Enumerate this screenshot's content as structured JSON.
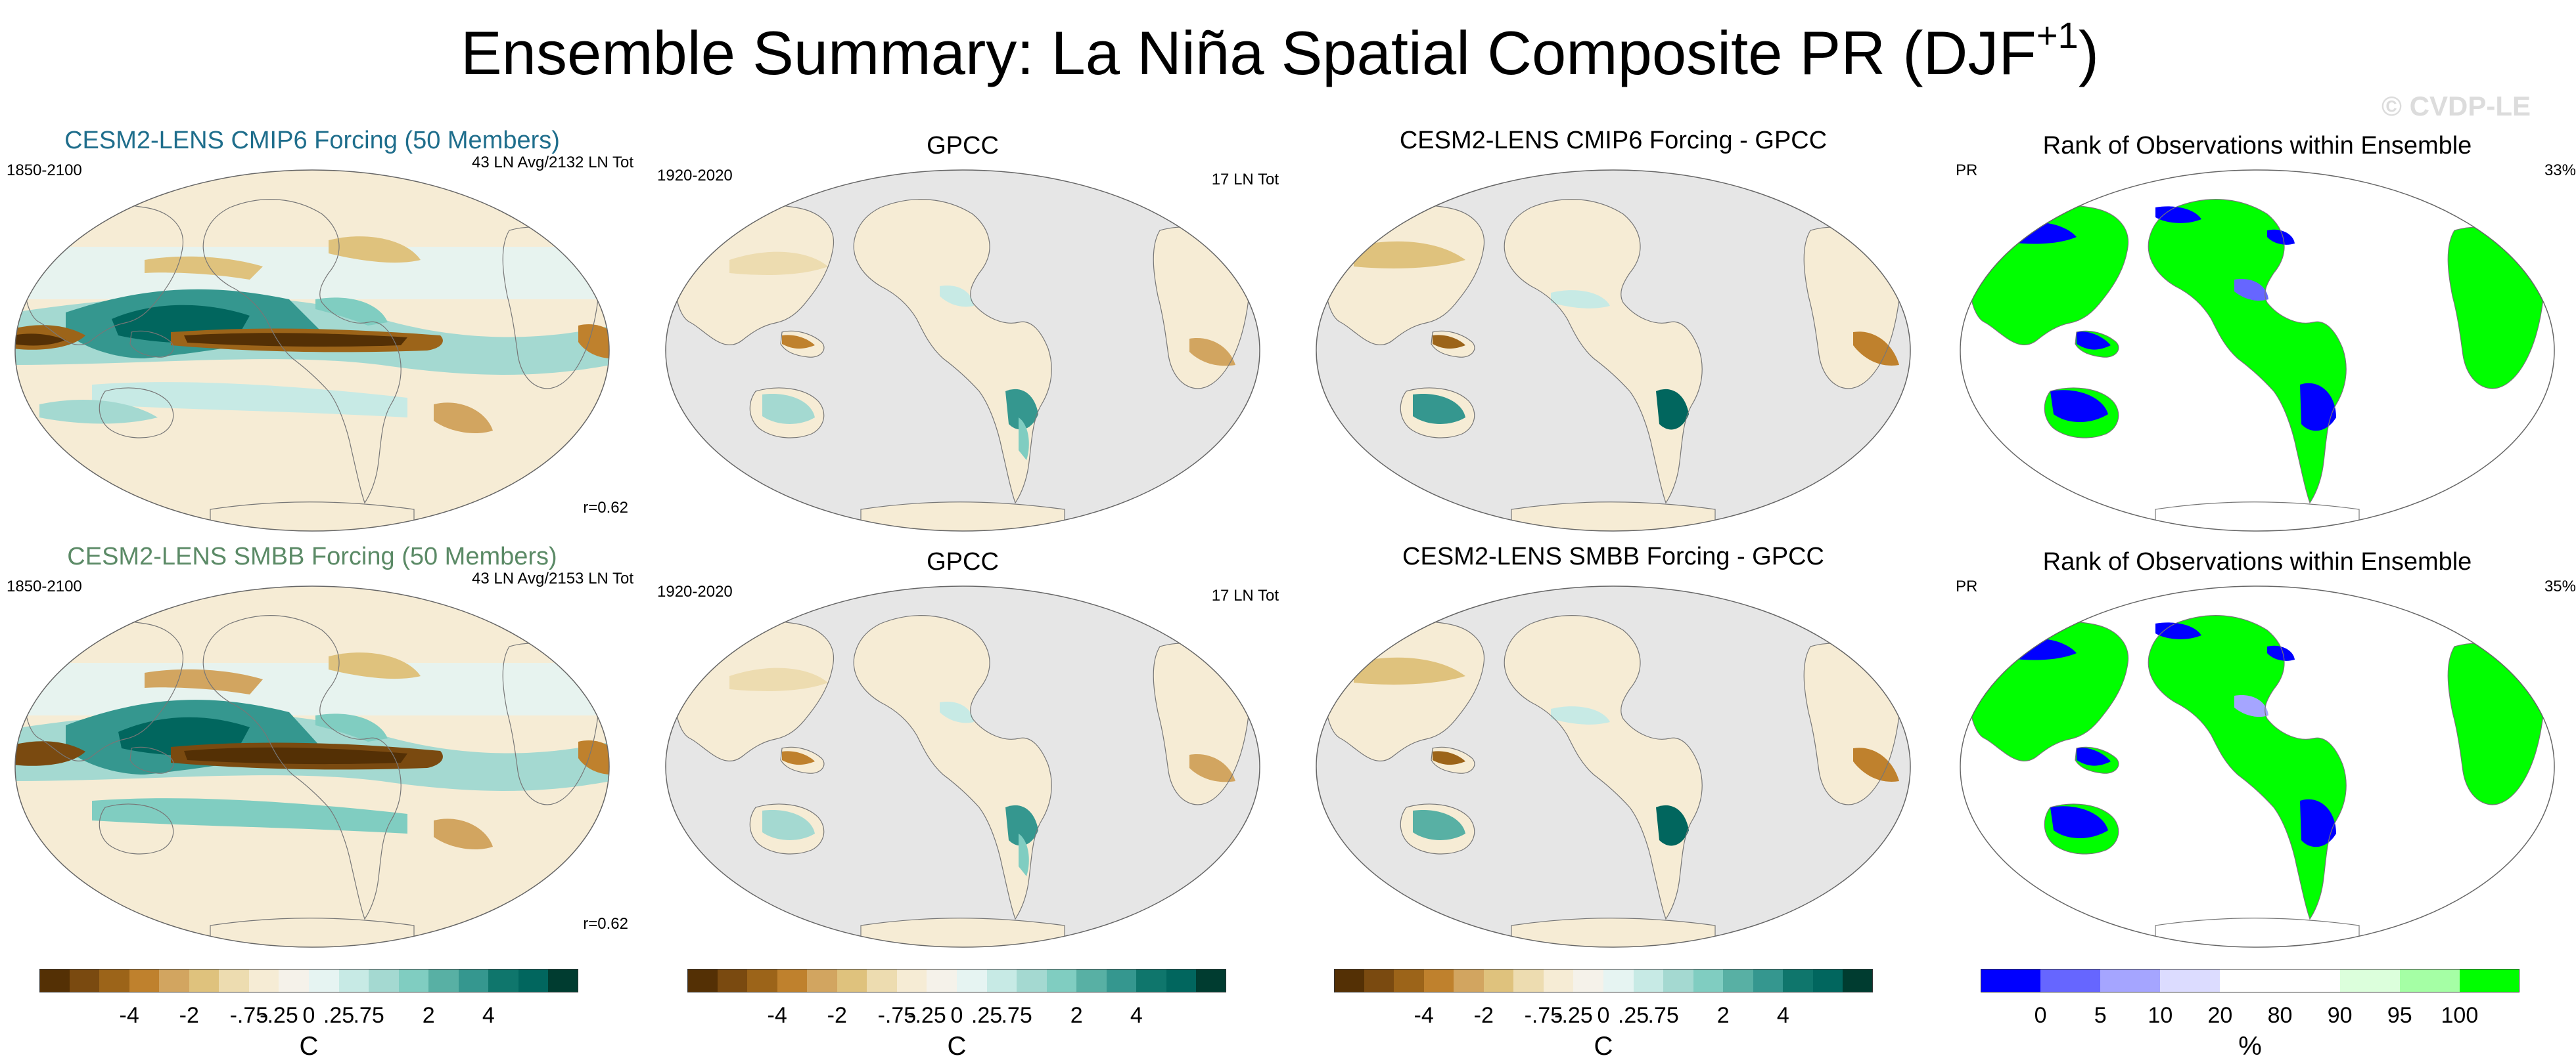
{
  "title_main": "Ensemble Summary: La Niña Spatial Composite PR (DJF",
  "title_sup": "+1",
  "title_end": ")",
  "watermark": "© CVDP-LE",
  "colors": {
    "brown_to_teal": [
      "#543005",
      "#7a4a10",
      "#9c6419",
      "#bf812d",
      "#d2a560",
      "#dfc27d",
      "#eddcb0",
      "#f6ecd5",
      "#f5f2ea",
      "#e6f4f2",
      "#c7eae5",
      "#a4d9d1",
      "#80cdc1",
      "#58b0a4",
      "#35978f",
      "#0f766c",
      "#01665e",
      "#003c30"
    ],
    "rank": [
      "#0000ff",
      "#6666ff",
      "#a5a5ff",
      "#dcdcff",
      "#ffffff",
      "#ffffff",
      "#dcffdc",
      "#a5ffa5",
      "#00ff00"
    ],
    "ocean_missing": "#e6e6e6",
    "title_cmip6": "#1f6e8c",
    "title_smbb": "#5b8a66"
  },
  "row1": {
    "ens_title": "CESM2-LENS CMIP6 Forcing (50 Members)",
    "ens_years": "1850-2100",
    "ens_events": "43 LN Avg/2132 LN Tot",
    "ens_r": "r=0.62",
    "obs_title": "GPCC",
    "obs_years": "1920-2020",
    "obs_events": "17 LN Tot",
    "diff_title": "CESM2-LENS CMIP6 Forcing - GPCC",
    "rank_title": "Rank of Observations within Ensemble",
    "rank_var": "PR",
    "rank_pct": "33%"
  },
  "row2": {
    "ens_title": "CESM2-LENS SMBB Forcing (50 Members)",
    "ens_years": "1850-2100",
    "ens_events": "43 LN Avg/2153 LN Tot",
    "ens_r": "r=0.62",
    "obs_title": "GPCC",
    "obs_years": "1920-2020",
    "obs_events": "17 LN Tot",
    "diff_title": "CESM2-LENS SMBB Forcing - GPCC",
    "rank_title": "Rank of Observations within Ensemble",
    "rank_var": "PR",
    "rank_pct": "35%"
  },
  "colorbars": {
    "diverging_ticks": [
      "-4",
      "-2",
      "-.75",
      "-.25",
      "0",
      ".25",
      ".75",
      "2",
      "4"
    ],
    "diverging_unit": "C",
    "rank_ticks": [
      "0",
      "5",
      "10",
      "20",
      "80",
      "90",
      "95",
      "100"
    ],
    "rank_unit": "%"
  }
}
